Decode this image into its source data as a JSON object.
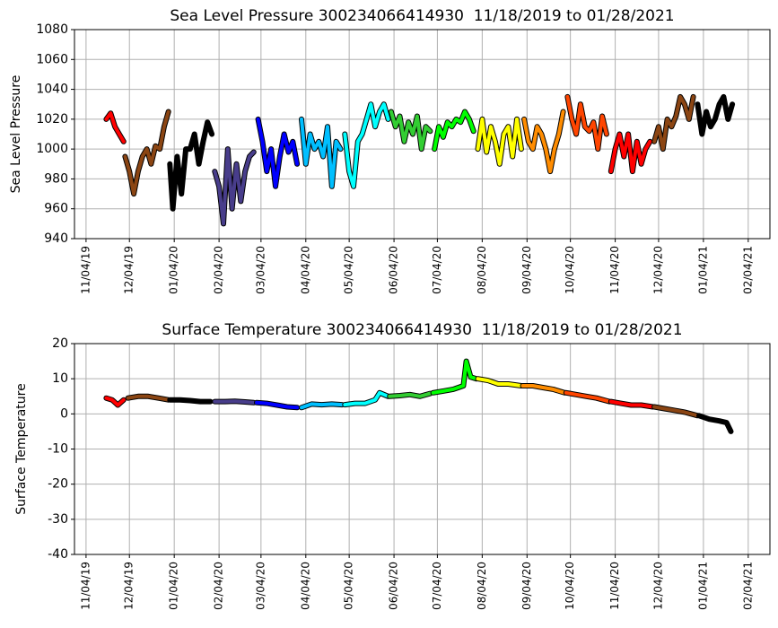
{
  "chart_data": [
    {
      "type": "line",
      "title": "Sea Level Pressure 300234066414930  11/18/2019 to 01/28/2021",
      "ylabel": "Sea Level Pressure",
      "grid": true,
      "xlim": [
        "2019-10-27",
        "2021-02-19"
      ],
      "ylim": [
        940,
        1080
      ],
      "yticks": [
        940,
        960,
        980,
        1000,
        1020,
        1040,
        1060,
        1080
      ],
      "xticks": [
        {
          "value": "2019-11-04",
          "label": "11/04/19"
        },
        {
          "value": "2019-12-04",
          "label": "12/04/19"
        },
        {
          "value": "2020-01-04",
          "label": "01/04/20"
        },
        {
          "value": "2020-02-04",
          "label": "02/04/20"
        },
        {
          "value": "2020-03-04",
          "label": "03/04/20"
        },
        {
          "value": "2020-04-04",
          "label": "04/04/20"
        },
        {
          "value": "2020-05-04",
          "label": "05/04/20"
        },
        {
          "value": "2020-06-04",
          "label": "06/04/20"
        },
        {
          "value": "2020-07-04",
          "label": "07/04/20"
        },
        {
          "value": "2020-08-04",
          "label": "08/04/20"
        },
        {
          "value": "2020-09-04",
          "label": "09/04/20"
        },
        {
          "value": "2020-10-04",
          "label": "10/04/20"
        },
        {
          "value": "2020-11-04",
          "label": "11/04/20"
        },
        {
          "value": "2020-12-04",
          "label": "12/04/20"
        },
        {
          "value": "2021-01-04",
          "label": "01/04/21"
        },
        {
          "value": "2021-02-04",
          "label": "02/04/21"
        }
      ],
      "series": [
        {
          "color": "#ff0000",
          "x": [
            "2019-11-18",
            "2019-11-21",
            "2019-11-24",
            "2019-11-27",
            "2019-11-30"
          ],
          "values": [
            1020,
            1024,
            1015,
            1010,
            1005
          ]
        },
        {
          "color": "#8b4513",
          "x": [
            "2019-12-01",
            "2019-12-04",
            "2019-12-07",
            "2019-12-10",
            "2019-12-13",
            "2019-12-16",
            "2019-12-19",
            "2019-12-22",
            "2019-12-25",
            "2019-12-28",
            "2019-12-31"
          ],
          "values": [
            995,
            985,
            970,
            985,
            995,
            1000,
            990,
            1002,
            1000,
            1015,
            1025
          ]
        },
        {
          "color": "#000000",
          "x": [
            "2020-01-01",
            "2020-01-03",
            "2020-01-06",
            "2020-01-09",
            "2020-01-12",
            "2020-01-15",
            "2020-01-18",
            "2020-01-21",
            "2020-01-24",
            "2020-01-27",
            "2020-01-30"
          ],
          "values": [
            990,
            960,
            995,
            970,
            1000,
            1000,
            1010,
            990,
            1005,
            1018,
            1010
          ]
        },
        {
          "color": "#483d8b",
          "x": [
            "2020-02-01",
            "2020-02-04",
            "2020-02-07",
            "2020-02-10",
            "2020-02-13",
            "2020-02-16",
            "2020-02-19",
            "2020-02-22",
            "2020-02-25",
            "2020-02-28"
          ],
          "values": [
            985,
            975,
            950,
            1000,
            960,
            990,
            965,
            985,
            995,
            998
          ]
        },
        {
          "color": "#0000ff",
          "x": [
            "2020-03-02",
            "2020-03-05",
            "2020-03-08",
            "2020-03-11",
            "2020-03-14",
            "2020-03-17",
            "2020-03-20",
            "2020-03-23",
            "2020-03-26",
            "2020-03-29"
          ],
          "values": [
            1020,
            1005,
            985,
            1000,
            975,
            995,
            1010,
            998,
            1005,
            990
          ]
        },
        {
          "color": "#00bfff",
          "x": [
            "2020-04-01",
            "2020-04-04",
            "2020-04-07",
            "2020-04-10",
            "2020-04-13",
            "2020-04-16",
            "2020-04-19",
            "2020-04-22",
            "2020-04-25",
            "2020-04-28"
          ],
          "values": [
            1020,
            990,
            1010,
            1000,
            1005,
            995,
            1015,
            975,
            1005,
            1000
          ]
        },
        {
          "color": "#00ffff",
          "x": [
            "2020-05-01",
            "2020-05-04",
            "2020-05-07",
            "2020-05-10",
            "2020-05-13",
            "2020-05-16",
            "2020-05-19",
            "2020-05-22",
            "2020-05-25",
            "2020-05-28",
            "2020-05-31"
          ],
          "values": [
            1010,
            985,
            975,
            1005,
            1010,
            1020,
            1030,
            1015,
            1025,
            1030,
            1020
          ]
        },
        {
          "color": "#32cd32",
          "x": [
            "2020-06-02",
            "2020-06-05",
            "2020-06-08",
            "2020-06-11",
            "2020-06-14",
            "2020-06-17",
            "2020-06-20",
            "2020-06-23",
            "2020-06-26",
            "2020-06-29"
          ],
          "values": [
            1025,
            1015,
            1022,
            1005,
            1018,
            1010,
            1022,
            1000,
            1015,
            1012
          ]
        },
        {
          "color": "#00ff00",
          "x": [
            "2020-07-02",
            "2020-07-05",
            "2020-07-08",
            "2020-07-11",
            "2020-07-14",
            "2020-07-17",
            "2020-07-20",
            "2020-07-23",
            "2020-07-26",
            "2020-07-29"
          ],
          "values": [
            1000,
            1015,
            1008,
            1018,
            1015,
            1020,
            1018,
            1025,
            1020,
            1012
          ]
        },
        {
          "color": "#ffff00",
          "x": [
            "2020-08-01",
            "2020-08-04",
            "2020-08-07",
            "2020-08-10",
            "2020-08-13",
            "2020-08-16",
            "2020-08-19",
            "2020-08-22",
            "2020-08-25",
            "2020-08-28",
            "2020-08-31"
          ],
          "values": [
            1000,
            1020,
            998,
            1015,
            1005,
            990,
            1010,
            1015,
            995,
            1020,
            1000
          ]
        },
        {
          "color": "#ff8c00",
          "x": [
            "2020-09-02",
            "2020-09-05",
            "2020-09-08",
            "2020-09-11",
            "2020-09-14",
            "2020-09-17",
            "2020-09-20",
            "2020-09-23",
            "2020-09-26",
            "2020-09-29"
          ],
          "values": [
            1020,
            1005,
            1000,
            1015,
            1010,
            1000,
            985,
            1000,
            1010,
            1025
          ]
        },
        {
          "color": "#ff4500",
          "x": [
            "2020-10-02",
            "2020-10-05",
            "2020-10-08",
            "2020-10-11",
            "2020-10-14",
            "2020-10-17",
            "2020-10-20",
            "2020-10-23",
            "2020-10-26",
            "2020-10-29"
          ],
          "values": [
            1035,
            1020,
            1010,
            1030,
            1015,
            1012,
            1018,
            1000,
            1022,
            1010
          ]
        },
        {
          "color": "#ff0000",
          "x": [
            "2020-11-01",
            "2020-11-04",
            "2020-11-07",
            "2020-11-10",
            "2020-11-13",
            "2020-11-16",
            "2020-11-19",
            "2020-11-22",
            "2020-11-25",
            "2020-11-28"
          ],
          "values": [
            985,
            1000,
            1010,
            995,
            1010,
            985,
            1005,
            990,
            1000,
            1005
          ]
        },
        {
          "color": "#8b4513",
          "x": [
            "2020-12-01",
            "2020-12-04",
            "2020-12-07",
            "2020-12-10",
            "2020-12-13",
            "2020-12-16",
            "2020-12-19",
            "2020-12-22",
            "2020-12-25",
            "2020-12-28"
          ],
          "values": [
            1005,
            1015,
            1000,
            1020,
            1015,
            1022,
            1035,
            1030,
            1020,
            1035
          ]
        },
        {
          "color": "#000000",
          "x": [
            "2020-12-31",
            "2021-01-03",
            "2021-01-06",
            "2021-01-09",
            "2021-01-12",
            "2021-01-15",
            "2021-01-18",
            "2021-01-21",
            "2021-01-24"
          ],
          "values": [
            1030,
            1010,
            1025,
            1015,
            1020,
            1030,
            1035,
            1020,
            1030
          ]
        }
      ]
    },
    {
      "type": "line",
      "title": "Surface Temperature 300234066414930  11/18/2019 to 01/28/2021",
      "ylabel": "Surface Temperature",
      "grid": true,
      "xlim": [
        "2019-10-27",
        "2021-02-19"
      ],
      "ylim": [
        -40,
        20
      ],
      "yticks": [
        -40,
        -30,
        -20,
        -10,
        0,
        10,
        20
      ],
      "xticks": [
        {
          "value": "2019-11-04",
          "label": "11/04/19"
        },
        {
          "value": "2019-12-04",
          "label": "12/04/19"
        },
        {
          "value": "2020-01-04",
          "label": "01/04/20"
        },
        {
          "value": "2020-02-04",
          "label": "02/04/20"
        },
        {
          "value": "2020-03-04",
          "label": "03/04/20"
        },
        {
          "value": "2020-04-04",
          "label": "04/04/20"
        },
        {
          "value": "2020-05-04",
          "label": "05/04/20"
        },
        {
          "value": "2020-06-04",
          "label": "06/04/20"
        },
        {
          "value": "2020-07-04",
          "label": "07/04/20"
        },
        {
          "value": "2020-08-04",
          "label": "08/04/20"
        },
        {
          "value": "2020-09-04",
          "label": "09/04/20"
        },
        {
          "value": "2020-10-04",
          "label": "10/04/20"
        },
        {
          "value": "2020-11-04",
          "label": "11/04/20"
        },
        {
          "value": "2020-12-04",
          "label": "12/04/20"
        },
        {
          "value": "2021-01-04",
          "label": "01/04/21"
        },
        {
          "value": "2021-02-04",
          "label": "02/04/21"
        }
      ],
      "series": [
        {
          "color": "#ff0000",
          "x": [
            "2019-11-18",
            "2019-11-22",
            "2019-11-26",
            "2019-11-30"
          ],
          "values": [
            4.5,
            4,
            2.5,
            4
          ]
        },
        {
          "color": "#8b4513",
          "x": [
            "2019-12-03",
            "2019-12-10",
            "2019-12-17",
            "2019-12-24",
            "2019-12-31"
          ],
          "values": [
            4.5,
            5,
            5,
            4.5,
            4
          ]
        },
        {
          "color": "#000000",
          "x": [
            "2020-01-01",
            "2020-01-08",
            "2020-01-15",
            "2020-01-22",
            "2020-01-29"
          ],
          "values": [
            4,
            4,
            3.8,
            3.5,
            3.5
          ]
        },
        {
          "color": "#483d8b",
          "x": [
            "2020-02-01",
            "2020-02-08",
            "2020-02-15",
            "2020-02-22",
            "2020-02-28"
          ],
          "values": [
            3.5,
            3.5,
            3.6,
            3.4,
            3.2
          ]
        },
        {
          "color": "#0000ff",
          "x": [
            "2020-03-01",
            "2020-03-08",
            "2020-03-15",
            "2020-03-22",
            "2020-03-29"
          ],
          "values": [
            3.2,
            3,
            2.5,
            2,
            1.8
          ]
        },
        {
          "color": "#00bfff",
          "x": [
            "2020-04-01",
            "2020-04-08",
            "2020-04-15",
            "2020-04-22",
            "2020-04-29"
          ],
          "values": [
            1.8,
            2.8,
            2.6,
            2.8,
            2.6
          ]
        },
        {
          "color": "#00ffff",
          "x": [
            "2020-05-01",
            "2020-05-08",
            "2020-05-15",
            "2020-05-22",
            "2020-05-25",
            "2020-05-31"
          ],
          "values": [
            2.6,
            3,
            3,
            4,
            6,
            5
          ]
        },
        {
          "color": "#32cd32",
          "x": [
            "2020-06-01",
            "2020-06-08",
            "2020-06-15",
            "2020-06-22",
            "2020-06-29"
          ],
          "values": [
            5,
            5.2,
            5.5,
            5,
            5.8
          ]
        },
        {
          "color": "#00ff00",
          "x": [
            "2020-07-01",
            "2020-07-08",
            "2020-07-15",
            "2020-07-22",
            "2020-07-24",
            "2020-07-27",
            "2020-07-31"
          ],
          "values": [
            6,
            6.5,
            7,
            8,
            15,
            10.5,
            10
          ]
        },
        {
          "color": "#ffff00",
          "x": [
            "2020-08-01",
            "2020-08-08",
            "2020-08-15",
            "2020-08-22",
            "2020-08-31"
          ],
          "values": [
            10,
            9.5,
            8.5,
            8.5,
            8
          ]
        },
        {
          "color": "#ff8c00",
          "x": [
            "2020-09-01",
            "2020-09-08",
            "2020-09-15",
            "2020-09-22",
            "2020-09-30"
          ],
          "values": [
            8,
            8,
            7.5,
            7,
            6
          ]
        },
        {
          "color": "#ff4500",
          "x": [
            "2020-10-01",
            "2020-10-08",
            "2020-10-15",
            "2020-10-22",
            "2020-10-31"
          ],
          "values": [
            6,
            5.5,
            5,
            4.5,
            3.5
          ]
        },
        {
          "color": "#ff0000",
          "x": [
            "2020-11-01",
            "2020-11-08",
            "2020-11-15",
            "2020-11-22",
            "2020-11-30"
          ],
          "values": [
            3.5,
            3,
            2.5,
            2.5,
            2
          ]
        },
        {
          "color": "#8b4513",
          "x": [
            "2020-12-01",
            "2020-12-08",
            "2020-12-15",
            "2020-12-22",
            "2020-12-31"
          ],
          "values": [
            2,
            1.5,
            1,
            0.5,
            -0.5
          ]
        },
        {
          "color": "#000000",
          "x": [
            "2021-01-01",
            "2021-01-08",
            "2021-01-15",
            "2021-01-20",
            "2021-01-23"
          ],
          "values": [
            -0.5,
            -1.5,
            -2,
            -2.5,
            -5
          ]
        }
      ]
    }
  ]
}
